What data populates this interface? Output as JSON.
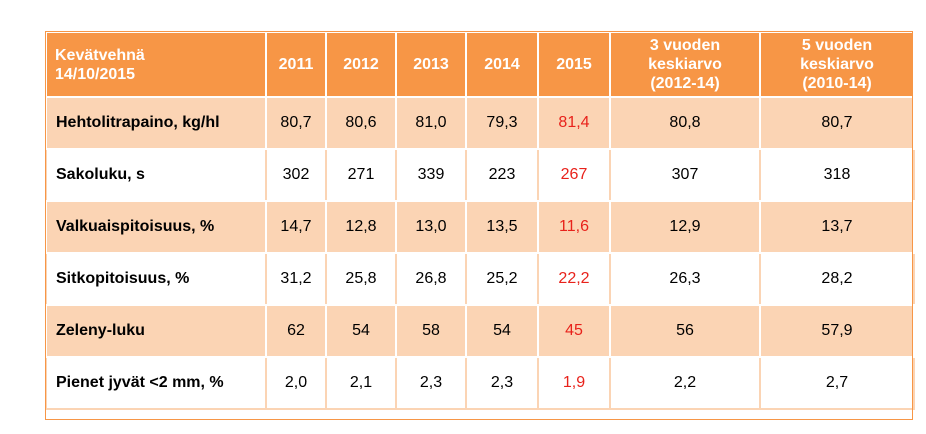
{
  "header": {
    "title_line1": "Kevätvehnä",
    "title_line2": "14/10/2015",
    "years": [
      "2011",
      "2012",
      "2013",
      "2014",
      "2015"
    ],
    "avg3_line1": "3 vuoden",
    "avg3_line2": "keskiarvo",
    "avg3_line3": "(2012-14)",
    "avg5_line1": "5 vuoden",
    "avg5_line2": "keskiarvo",
    "avg5_line3": "(2010-14)"
  },
  "rows": [
    {
      "label": "Hehtolitrapaino, kg/hl",
      "values": [
        "80,7",
        "80,6",
        "81,0",
        "79,3",
        "81,4"
      ],
      "avg3": "80,8",
      "avg5": "80,7"
    },
    {
      "label": "Sakoluku, s",
      "values": [
        "302",
        "271",
        "339",
        "223",
        "267"
      ],
      "avg3": "307",
      "avg5": "318"
    },
    {
      "label": "Valkuaispitoisuus, %",
      "values": [
        "14,7",
        "12,8",
        "13,0",
        "13,5",
        "11,6"
      ],
      "avg3": "12,9",
      "avg5": "13,7"
    },
    {
      "label": "Sitkopitoisuus, %",
      "values": [
        "31,2",
        "25,8",
        "26,8",
        "25,2",
        "22,2"
      ],
      "avg3": "26,3",
      "avg5": "28,2"
    },
    {
      "label": "Zeleny-luku",
      "values": [
        "62",
        "54",
        "58",
        "54",
        "45"
      ],
      "avg3": "56",
      "avg5": "57,9"
    },
    {
      "label": "Pienet jyvät <2 mm, %",
      "values": [
        "2,0",
        "2,1",
        "2,3",
        "2,3",
        "1,9"
      ],
      "avg3": "2,2",
      "avg5": "2,7"
    }
  ],
  "colors": {
    "header_bg": "#f79646",
    "band_bg": "#fbd4b4",
    "highlight_text": "#e8221b"
  }
}
